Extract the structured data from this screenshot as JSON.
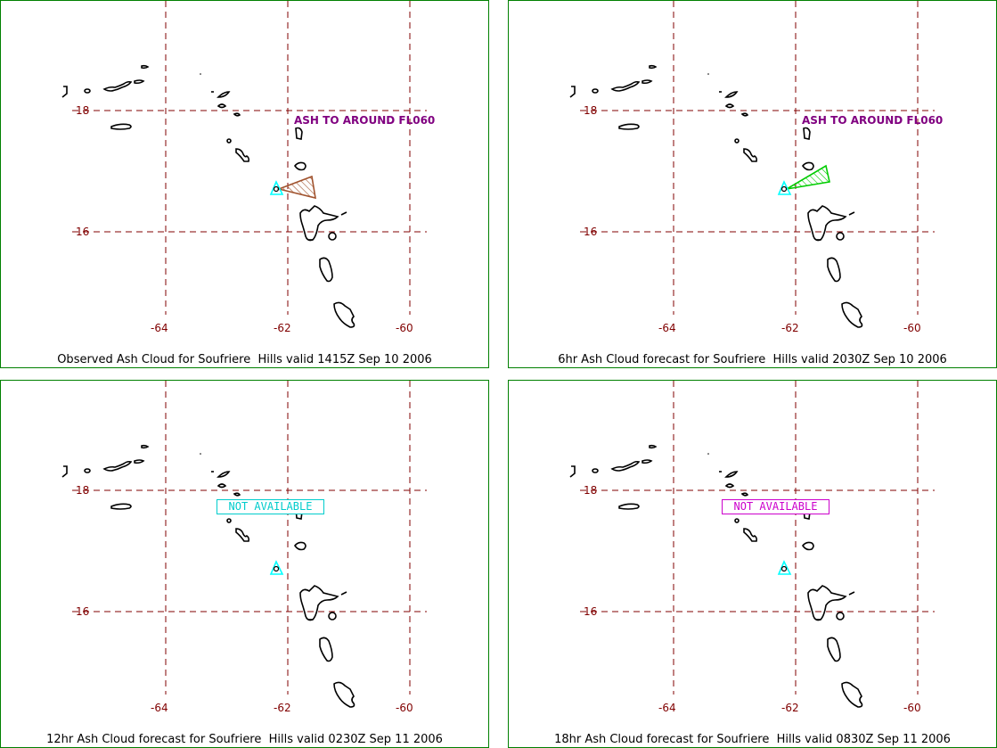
{
  "grid": {
    "lat_labels": [
      "18",
      "16"
    ],
    "lon_labels": [
      "-64",
      "-62",
      "-60"
    ]
  },
  "colors": {
    "frame": "#008000",
    "grid": "#800000",
    "coast": "#000000",
    "volcano": "#00ffff",
    "ash_label": "#800080",
    "obs_polygon": "#a0522d",
    "fcst_polygon": "#00cc00",
    "na_12hr": "#00cccc",
    "na_18hr": "#cc00cc"
  },
  "volcano": {
    "name": "Soufriere Hills",
    "icon": "triangle-volcano-icon"
  },
  "panels": [
    {
      "id": "observed",
      "caption": "Observed Ash Cloud for Soufriere  Hills valid 1415Z Sep 10 2006",
      "ash_label": "ASH TO AROUND FL060",
      "status": ""
    },
    {
      "id": "fcst-6hr",
      "caption": "6hr Ash Cloud forecast for Soufriere  Hills valid 2030Z Sep 10 2006",
      "ash_label": "ASH TO AROUND FL060",
      "status": ""
    },
    {
      "id": "fcst-12hr",
      "caption": "12hr Ash Cloud forecast for Soufriere  Hills valid 0230Z Sep 11 2006",
      "ash_label": "",
      "status": "NOT AVAILABLE"
    },
    {
      "id": "fcst-18hr",
      "caption": "18hr Ash Cloud forecast for Soufriere  Hills valid 0830Z Sep 11 2006",
      "ash_label": "",
      "status": "NOT AVAILABLE"
    }
  ]
}
